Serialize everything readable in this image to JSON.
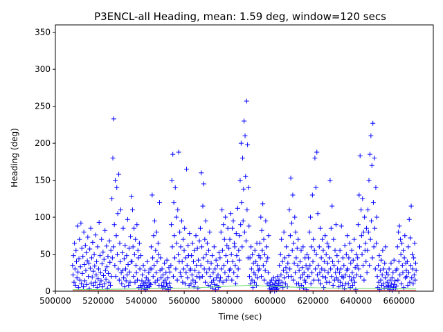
{
  "chart_data": {
    "type": "scatter",
    "title": "P3ENCL-all Heading, mean: 1.59 deg, window=120 secs",
    "xlabel": "Time (sec)",
    "ylabel": "Heading (deg)",
    "xlim": [
      500000,
      676000
    ],
    "ylim": [
      0,
      360
    ],
    "x_ticks": [
      500000,
      520000,
      540000,
      560000,
      580000,
      600000,
      620000,
      640000,
      660000
    ],
    "y_ticks": [
      0,
      50,
      100,
      150,
      200,
      250,
      300,
      350
    ],
    "grid": false,
    "marker": "+",
    "marker_color": "#0000ff",
    "sampling_interval_sec": 120,
    "x_start": 508000,
    "x_end": 668000,
    "series": [
      {
        "values": [
          35,
          22,
          48,
          12,
          65,
          30,
          8,
          55,
          40,
          18,
          88,
          26,
          5,
          44,
          70,
          15,
          33,
          92,
          10,
          58,
          24,
          47,
          6,
          80,
          36,
          14,
          62,
          28,
          52,
          9,
          41,
          73,
          20,
          38,
          3,
          57,
          31,
          85,
          11,
          45,
          19,
          66,
          27,
          8,
          50,
          34,
          12,
          76,
          22,
          40,
          5,
          60,
          17,
          30,
          93,
          9,
          48,
          25,
          14,
          70,
          37,
          6,
          53,
          21,
          43,
          10,
          82,
          28,
          16,
          61,
          33,
          4,
          47,
          24,
          12,
          68,
          39,
          8,
          55,
          20,
          125,
          45,
          180,
          60,
          233,
          90,
          35,
          150,
          20,
          75,
          140,
          50,
          105,
          30,
          158,
          15,
          65,
          40,
          110,
          25,
          10,
          52,
          28,
          85,
          18,
          44,
          6,
          62,
          30,
          14,
          48,
          22,
          97,
          36,
          8,
          58,
          26,
          12,
          74,
          40,
          128,
          40,
          110,
          60,
          20,
          85,
          50,
          12,
          70,
          35,
          25,
          90,
          15,
          55,
          45,
          5,
          65,
          30,
          8,
          48,
          3,
          14,
          22,
          7,
          35,
          10,
          4,
          28,
          12,
          2,
          18,
          8,
          40,
          5,
          15,
          25,
          6,
          11,
          30,
          9,
          60,
          30,
          130,
          45,
          20,
          75,
          35,
          95,
          12,
          55,
          25,
          80,
          40,
          15,
          65,
          50,
          8,
          120,
          28,
          45,
          18,
          8,
          30,
          4,
          22,
          12,
          6,
          38,
          15,
          3,
          25,
          10,
          42,
          7,
          18,
          2,
          32,
          11,
          26,
          5,
          35,
          90,
          150,
          60,
          185,
          20,
          120,
          75,
          45,
          140,
          30,
          100,
          65,
          15,
          110,
          50,
          188,
          40,
          80,
          25,
          60,
          20,
          95,
          40,
          12,
          70,
          30,
          55,
          85,
          10,
          45,
          25,
          165,
          35,
          18,
          62,
          48,
          8,
          78,
          28,
          30,
          10,
          48,
          22,
          65,
          15,
          40,
          6,
          55,
          28,
          12,
          75,
          35,
          20,
          58,
          4,
          42,
          25,
          68,
          18,
          85,
          35,
          160,
          60,
          20,
          115,
          45,
          145,
          30,
          70,
          12,
          95,
          50,
          25,
          65,
          40,
          8,
          55,
          30,
          80,
          20,
          6,
          38,
          12,
          48,
          4,
          25,
          15,
          60,
          9,
          30,
          2,
          42,
          18,
          8,
          35,
          22,
          5,
          52,
          14,
          45,
          18,
          80,
          30,
          110,
          55,
          12,
          90,
          35,
          70,
          25,
          100,
          48,
          15,
          62,
          40,
          85,
          20,
          58,
          28,
          70,
          30,
          105,
          50,
          15,
          85,
          40,
          95,
          25,
          65,
          60,
          35,
          10,
          78,
          48,
          20,
          112,
          30,
          55,
          42,
          75,
          150,
          90,
          200,
          120,
          60,
          180,
          95,
          138,
          230,
          80,
          210,
          155,
          68,
          257,
          110,
          198,
          45,
          140,
          88,
          20,
          45,
          10,
          60,
          30,
          15,
          50,
          5,
          38,
          25,
          12,
          55,
          22,
          40,
          8,
          65,
          18,
          35,
          28,
          48,
          30,
          65,
          45,
          100,
          20,
          82,
          55,
          118,
          35,
          70,
          15,
          50,
          28,
          95,
          40,
          60,
          10,
          45,
          25,
          75,
          8,
          3,
          12,
          1,
          6,
          15,
          2,
          9,
          4,
          18,
          7,
          0,
          11,
          5,
          14,
          2,
          8,
          20,
          3,
          10,
          15,
          35,
          8,
          50,
          22,
          70,
          12,
          40,
          5,
          28,
          80,
          18,
          45,
          10,
          32,
          60,
          25,
          6,
          38,
          20,
          48,
          110,
          30,
          75,
          153,
          20,
          92,
          55,
          130,
          15,
          65,
          38,
          100,
          25,
          80,
          45,
          10,
          58,
          35,
          70,
          10,
          28,
          5,
          40,
          18,
          55,
          8,
          32,
          22,
          60,
          4,
          25,
          15,
          45,
          12,
          35,
          2,
          50,
          20,
          30,
          45,
          20,
          80,
          35,
          100,
          10,
          60,
          25,
          130,
          40,
          70,
          15,
          55,
          180,
          30,
          140,
          50,
          188,
          22,
          105,
          35,
          15,
          60,
          25,
          85,
          10,
          45,
          30,
          70,
          20,
          55,
          5,
          40,
          28,
          75,
          18,
          50,
          12,
          65,
          38,
          25,
          60,
          12,
          45,
          150,
          30,
          85,
          20,
          115,
          40,
          8,
          70,
          35,
          15,
          55,
          25,
          90,
          18,
          48,
          30,
          15,
          40,
          6,
          25,
          55,
          12,
          30,
          88,
          20,
          8,
          45,
          18,
          35,
          3,
          62,
          22,
          10,
          50,
          28,
          75,
          30,
          10,
          45,
          20,
          65,
          5,
          38,
          15,
          55,
          25,
          8,
          42,
          18,
          70,
          12,
          32,
          2,
          50,
          22,
          35,
          45,
          90,
          30,
          130,
          60,
          183,
          20,
          110,
          75,
          50,
          125,
          35,
          80,
          15,
          100,
          55,
          65,
          40,
          85,
          25,
          55,
          110,
          80,
          150,
          35,
          185,
          70,
          210,
          95,
          170,
          45,
          227,
          120,
          60,
          180,
          85,
          30,
          140,
          65,
          100,
          20,
          5,
          35,
          12,
          48,
          2,
          28,
          15,
          42,
          8,
          22,
          55,
          10,
          30,
          4,
          38,
          18,
          60,
          6,
          25,
          12,
          4,
          22,
          8,
          30,
          2,
          15,
          6,
          38,
          10,
          18,
          1,
          25,
          5,
          42,
          9,
          14,
          3,
          28,
          7,
          30,
          60,
          15,
          80,
          40,
          88,
          22,
          70,
          50,
          10,
          65,
          35,
          25,
          55,
          5,
          45,
          75,
          18,
          38,
          28,
          20,
          40,
          8,
          60,
          25,
          97,
          12,
          72,
          35,
          115,
          18,
          50,
          30,
          10,
          45,
          22,
          65,
          15,
          38,
          28
        ]
      }
    ]
  }
}
